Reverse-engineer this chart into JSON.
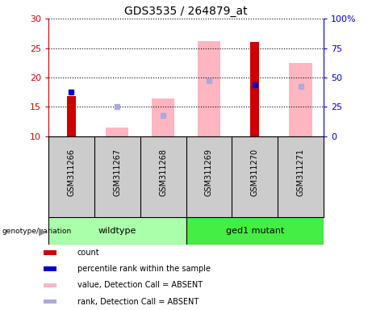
{
  "title": "GDS3535 / 264879_at",
  "samples": [
    "GSM311266",
    "GSM311267",
    "GSM311268",
    "GSM311269",
    "GSM311270",
    "GSM311271"
  ],
  "ylim_left": [
    10,
    30
  ],
  "ylim_right": [
    0,
    100
  ],
  "yticks_left": [
    10,
    15,
    20,
    25,
    30
  ],
  "yticks_right": [
    0,
    25,
    50,
    75,
    100
  ],
  "yticklabels_right": [
    "0",
    "25",
    "50",
    "75",
    "100%"
  ],
  "red_bars": [
    16.8,
    null,
    null,
    null,
    26.0,
    null
  ],
  "blue_dots_y": [
    17.5,
    null,
    null,
    null,
    18.8,
    null
  ],
  "pink_bars": [
    null,
    11.5,
    16.5,
    26.2,
    null,
    22.5
  ],
  "lavender_dots_y": [
    null,
    15.0,
    13.5,
    19.5,
    null,
    18.5
  ],
  "red_color": "#CC0000",
  "blue_color": "#0000CC",
  "pink_color": "#FFB6C1",
  "lavender_color": "#AAAADD",
  "wildtype_color": "#AAFFAA",
  "ged1_color": "#44EE44",
  "sample_box_color": "#CCCCCC",
  "plot_bg": "#FFFFFF",
  "left_tick_color": "#CC0000",
  "right_tick_color": "#0000BB",
  "legend_items": [
    {
      "label": "count",
      "color": "#CC0000"
    },
    {
      "label": "percentile rank within the sample",
      "color": "#0000CC"
    },
    {
      "label": "value, Detection Call = ABSENT",
      "color": "#FFB6C1"
    },
    {
      "label": "rank, Detection Call = ABSENT",
      "color": "#AAAADD"
    }
  ]
}
